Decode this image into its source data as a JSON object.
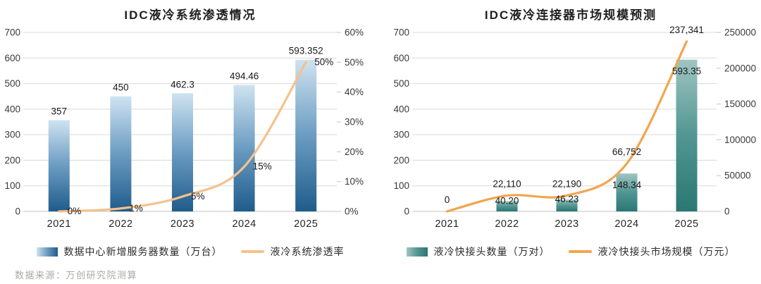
{
  "source_note": "数据来源：万创研究院测算",
  "chart_data": [
    {
      "type": "bar+line",
      "title": "IDC液冷系统渗透情况",
      "categories": [
        "2021",
        "2022",
        "2023",
        "2024",
        "2025"
      ],
      "bar_series": {
        "name": "数据中心新增服务器数量（万台）",
        "axis": "left",
        "values": [
          357,
          450,
          462.3,
          494.46,
          593.352
        ],
        "labels": [
          "357",
          "450",
          "462.3",
          "494.46",
          "593.352"
        ]
      },
      "line_series": {
        "name": "液冷系统渗透率",
        "axis": "right",
        "values": [
          0,
          1,
          5,
          15,
          50
        ],
        "labels": [
          "0%",
          "1%",
          "5%",
          "15%",
          "50%"
        ]
      },
      "left_axis": {
        "min": 0,
        "max": 700,
        "tick_labels": [
          "700",
          "600",
          "500",
          "400",
          "300",
          "200",
          "100",
          "0"
        ]
      },
      "right_axis": {
        "min": 0,
        "max": 60,
        "unit": "%",
        "tick_labels": [
          "60%",
          "50%",
          "40%",
          "30%",
          "20%",
          "10%",
          "0%"
        ]
      },
      "grid": true,
      "legend_position": "bottom",
      "label_style": {
        "bar": "outside",
        "line": "right"
      },
      "colors": {
        "bar_top": "#cfe3f1",
        "bar_mid": "#6b9cc2",
        "bar_bottom": "#1f5c8b",
        "line": "#f5c28c"
      }
    },
    {
      "type": "bar+line",
      "title": "IDC液冷连接器市场规模预测",
      "categories": [
        "2021",
        "2022",
        "2023",
        "2024",
        "2025"
      ],
      "bar_series": {
        "name": "液冷快接头数量（万对）",
        "axis": "left",
        "values": [
          0,
          40.2,
          46.23,
          148.34,
          593.35
        ],
        "labels": [
          "",
          "40.20",
          "46.23",
          "148.34",
          "593.35"
        ]
      },
      "line_series": {
        "name": "液冷快接头市场规模（万元）",
        "axis": "right",
        "values": [
          0,
          22110,
          22190,
          66752,
          237341
        ],
        "labels": [
          "0",
          "22,110",
          "22,190",
          "66,752",
          "237,341"
        ]
      },
      "left_axis": {
        "min": 0,
        "max": 700,
        "tick_labels": [
          "700",
          "600",
          "500",
          "400",
          "300",
          "200",
          "100",
          "0"
        ]
      },
      "right_axis": {
        "min": 0,
        "max": 250000,
        "tick_labels": [
          "250000",
          "200000",
          "150000",
          "100000",
          "50000",
          "0"
        ]
      },
      "grid": true,
      "legend_position": "bottom",
      "label_style": {
        "bar": "inside-end",
        "line": "above"
      },
      "colors": {
        "bar_top": "#9fc5c2",
        "bar_mid": "#529692",
        "bar_bottom": "#2a7773",
        "line": "#f1a64f"
      }
    }
  ]
}
